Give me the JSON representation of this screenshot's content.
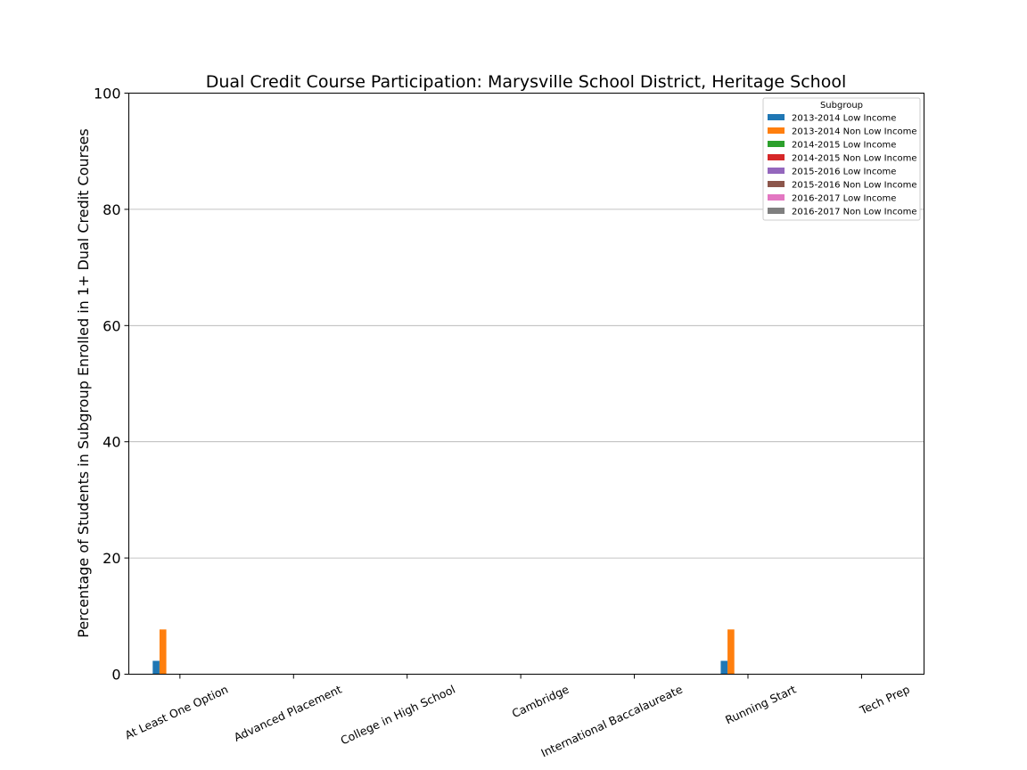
{
  "chart_data": {
    "type": "bar",
    "title": "Dual Credit Course Participation: Marysville School District, Heritage School",
    "xlabel": "",
    "ylabel": "Percentage of Students in Subgroup Enrolled in 1+ Dual Credit Courses",
    "ylim": [
      0,
      100
    ],
    "yticks": [
      0,
      20,
      40,
      60,
      80,
      100
    ],
    "grid": "y",
    "legend_title": "Subgroup",
    "legend_position": "top-right",
    "categories": [
      "At Least One Option",
      "Advanced Placement",
      "College in High School",
      "Cambridge",
      "International Baccalaureate",
      "Running Start",
      "Tech Prep"
    ],
    "series": [
      {
        "name": "2013-2014 Low Income",
        "color": "#1f77b4",
        "values": [
          2.3,
          0,
          0,
          0,
          0,
          2.3,
          0
        ]
      },
      {
        "name": "2013-2014 Non Low Income",
        "color": "#ff7f0e",
        "values": [
          7.7,
          0,
          0,
          0,
          0,
          7.7,
          0
        ]
      },
      {
        "name": "2014-2015 Low Income",
        "color": "#2ca02c",
        "values": [
          0,
          0,
          0,
          0,
          0,
          0,
          0
        ]
      },
      {
        "name": "2014-2015 Non Low Income",
        "color": "#d62728",
        "values": [
          0,
          0,
          0,
          0,
          0,
          0,
          0
        ]
      },
      {
        "name": "2015-2016 Low Income",
        "color": "#9467bd",
        "values": [
          0,
          0,
          0,
          0,
          0,
          0,
          0
        ]
      },
      {
        "name": "2015-2016 Non Low Income",
        "color": "#8c564b",
        "values": [
          0,
          0,
          0,
          0,
          0,
          0,
          0
        ]
      },
      {
        "name": "2016-2017 Low Income",
        "color": "#e377c2",
        "values": [
          0,
          0,
          0,
          0,
          0,
          0,
          0
        ]
      },
      {
        "name": "2016-2017 Non Low Income",
        "color": "#7f7f7f",
        "values": [
          0,
          0,
          0,
          0,
          0,
          0,
          0
        ]
      }
    ]
  }
}
